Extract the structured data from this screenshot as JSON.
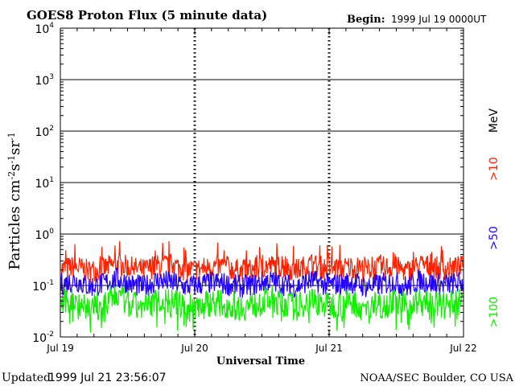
{
  "header": {
    "title": "GOES8 Proton Flux (5 minute data)",
    "begin_label": "Begin:",
    "begin_value": "1999 Jul 19 0000UT"
  },
  "footer": {
    "updated_label": "Updated",
    "updated_value": "1999 Jul 21 23:56:07",
    "credit": "NOAA/SEC Boulder, CO USA"
  },
  "chart_data": {
    "type": "line",
    "title": "GOES8 Proton Flux (5 minute data)",
    "xlabel": "Universal Time",
    "ylabel": "Particles cm⁻²s⁻¹sr⁻¹",
    "yscale": "log",
    "ylim": [
      0.01,
      10000
    ],
    "xlim": [
      "1999-07-19 00:00",
      "1999-07-22 00:00"
    ],
    "grid": true,
    "x_ticks": [
      "Jul 19",
      "Jul 20",
      "Jul 21",
      "Jul 22"
    ],
    "y_ticks": [
      {
        "base": "10",
        "exp": "-2"
      },
      {
        "base": "10",
        "exp": "-1"
      },
      {
        "base": "10",
        "exp": "0"
      },
      {
        "base": "10",
        "exp": "1"
      },
      {
        "base": "10",
        "exp": "2"
      },
      {
        "base": "10",
        "exp": "3"
      },
      {
        "base": "10",
        "exp": "4"
      }
    ],
    "legend": {
      "placement": "right",
      "unit": "MeV",
      "entries": [
        {
          "label": ">10",
          "color": "#ff2200"
        },
        {
          "label": ">50",
          "color": "#2200ff"
        },
        {
          "label": ">100",
          "color": "#11ee00"
        }
      ]
    },
    "series": [
      {
        "name": ">10 MeV",
        "color": "#ff2200",
        "values": [
          0.2,
          0.22,
          0.18,
          0.2,
          0.25,
          0.21,
          0.19,
          0.23,
          0.24,
          0.19,
          0.2,
          0.22,
          0.21,
          0.18,
          0.2,
          0.23,
          0.22,
          0.19,
          0.24,
          0.21,
          0.2,
          0.22,
          0.19,
          0.21,
          0.22,
          0.18,
          0.24,
          0.21,
          0.2,
          0.22
        ]
      },
      {
        "name": ">50 MeV",
        "color": "#2200ff",
        "values": [
          0.1,
          0.12,
          0.09,
          0.1,
          0.13,
          0.1,
          0.09,
          0.12,
          0.11,
          0.09,
          0.1,
          0.11,
          0.1,
          0.09,
          0.1,
          0.12,
          0.1,
          0.09,
          0.12,
          0.1,
          0.1,
          0.11,
          0.09,
          0.1,
          0.11,
          0.09,
          0.12,
          0.1,
          0.1,
          0.11
        ]
      },
      {
        "name": ">100 MeV",
        "color": "#11ee00",
        "values": [
          0.04,
          0.05,
          0.035,
          0.04,
          0.06,
          0.04,
          0.035,
          0.05,
          0.045,
          0.035,
          0.04,
          0.045,
          0.04,
          0.035,
          0.04,
          0.05,
          0.045,
          0.035,
          0.05,
          0.04,
          0.04,
          0.045,
          0.035,
          0.04,
          0.045,
          0.035,
          0.05,
          0.04,
          0.04,
          0.045
        ]
      }
    ]
  }
}
